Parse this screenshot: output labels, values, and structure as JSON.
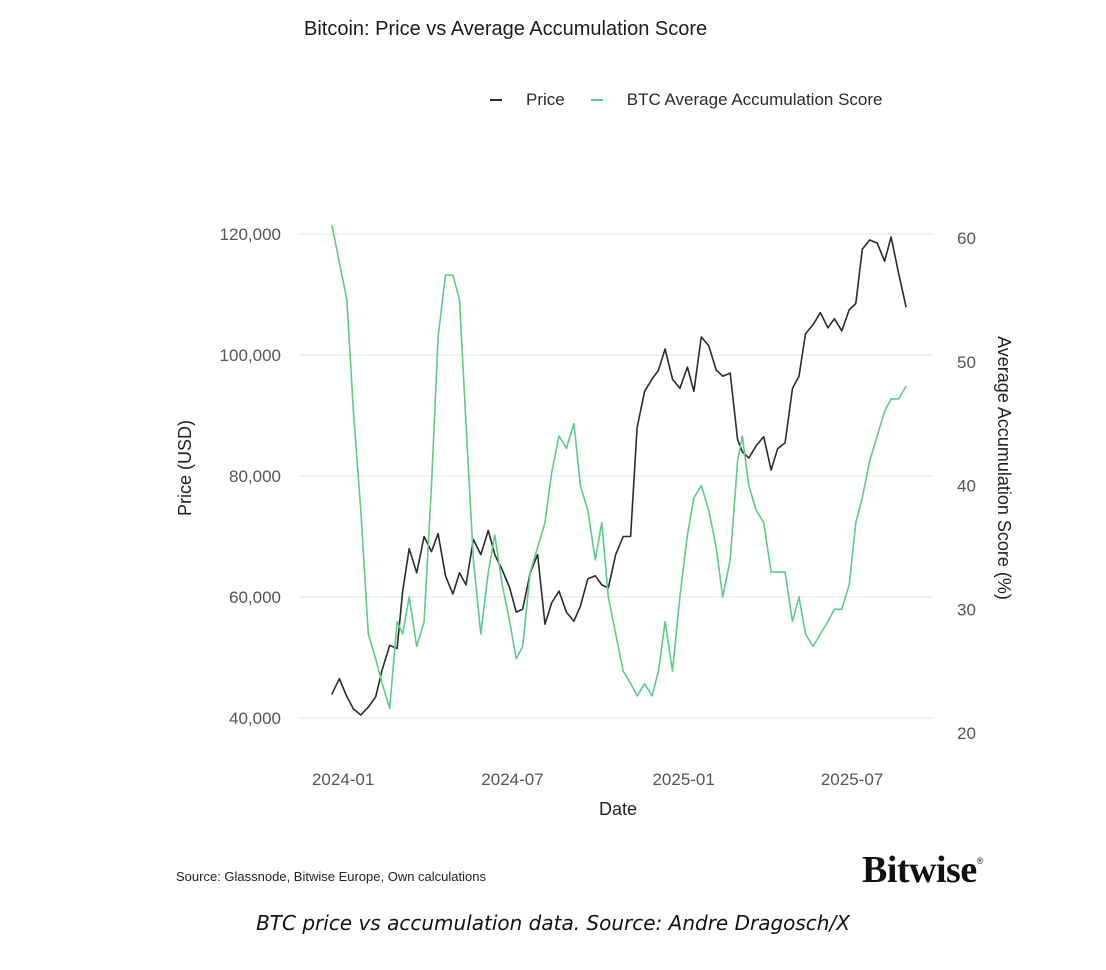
{
  "chart_data": {
    "type": "line",
    "title": "Bitcoin: Price vs Average Accumulation Score",
    "xlabel": "Date",
    "ylabel_left": "Price (USD)",
    "ylabel_right": "Average Accumulation Score (%)",
    "x_ticks": [
      "2024-01",
      "2024-07",
      "2025-01",
      "2025-07"
    ],
    "y_left_ticks": [
      "40,000",
      "60,000",
      "80,000",
      "100,000",
      "120,000"
    ],
    "y_right_ticks": [
      "20",
      "30",
      "40",
      "50",
      "60"
    ],
    "ylim_left": [
      39000,
      123500
    ],
    "ylim_right": [
      20,
      61.5
    ],
    "grid": true,
    "legend_placement": "top-right",
    "series": [
      {
        "name": "Price",
        "axis": "left",
        "color": "#2b2b2b",
        "x": [
          "2023-12-20",
          "2023-12-28",
          "2024-01-05",
          "2024-01-12",
          "2024-01-20",
          "2024-01-28",
          "2024-02-05",
          "2024-02-12",
          "2024-02-20",
          "2024-02-28",
          "2024-03-05",
          "2024-03-12",
          "2024-03-20",
          "2024-03-28",
          "2024-04-05",
          "2024-04-12",
          "2024-04-20",
          "2024-04-28",
          "2024-05-05",
          "2024-05-12",
          "2024-05-20",
          "2024-05-28",
          "2024-06-05",
          "2024-06-12",
          "2024-06-20",
          "2024-06-28",
          "2024-07-05",
          "2024-07-12",
          "2024-07-20",
          "2024-07-28",
          "2024-08-05",
          "2024-08-12",
          "2024-08-20",
          "2024-08-28",
          "2024-09-05",
          "2024-09-12",
          "2024-09-20",
          "2024-09-28",
          "2024-10-05",
          "2024-10-12",
          "2024-10-20",
          "2024-10-28",
          "2024-11-05",
          "2024-11-12",
          "2024-11-20",
          "2024-11-28",
          "2024-12-05",
          "2024-12-12",
          "2024-12-20",
          "2024-12-28",
          "2025-01-05",
          "2025-01-12",
          "2025-01-20",
          "2025-01-28",
          "2025-02-05",
          "2025-02-12",
          "2025-02-20",
          "2025-02-28",
          "2025-03-05",
          "2025-03-12",
          "2025-03-20",
          "2025-03-28",
          "2025-04-05",
          "2025-04-12",
          "2025-04-20",
          "2025-04-28",
          "2025-05-05",
          "2025-05-12",
          "2025-05-20",
          "2025-05-28",
          "2025-06-05",
          "2025-06-12",
          "2025-06-20",
          "2025-06-28",
          "2025-07-05",
          "2025-07-12",
          "2025-07-20",
          "2025-07-28",
          "2025-08-05",
          "2025-08-12",
          "2025-08-20",
          "2025-08-28"
        ],
        "values": [
          44000,
          46500,
          43500,
          41500,
          40500,
          41800,
          43500,
          48000,
          52000,
          51500,
          61000,
          68000,
          64000,
          70000,
          67500,
          70500,
          63500,
          60500,
          64000,
          62000,
          69500,
          67000,
          71000,
          67000,
          64500,
          61500,
          57500,
          58000,
          64000,
          67000,
          55500,
          59000,
          61000,
          57500,
          56000,
          58500,
          63000,
          63500,
          62000,
          61500,
          67000,
          70000,
          70000,
          88000,
          94000,
          96000,
          97500,
          101000,
          96000,
          94500,
          98000,
          94000,
          103000,
          101500,
          97500,
          96500,
          97000,
          86000,
          84000,
          83000,
          85000,
          86500,
          81000,
          84500,
          85500,
          94500,
          96500,
          103500,
          105000,
          107000,
          104500,
          106000,
          104000,
          107500,
          108500,
          117500,
          119000,
          118500,
          115500,
          119500,
          113500,
          108000
        ]
      },
      {
        "name": "BTC Average Accumulation Score",
        "axis": "right",
        "color": "#5dcc8a",
        "x": [
          "2023-12-20",
          "2023-12-28",
          "2024-01-05",
          "2024-01-12",
          "2024-01-20",
          "2024-01-28",
          "2024-02-05",
          "2024-02-12",
          "2024-02-20",
          "2024-02-28",
          "2024-03-05",
          "2024-03-12",
          "2024-03-20",
          "2024-03-28",
          "2024-04-05",
          "2024-04-12",
          "2024-04-20",
          "2024-04-28",
          "2024-05-05",
          "2024-05-12",
          "2024-05-20",
          "2024-05-28",
          "2024-06-05",
          "2024-06-12",
          "2024-06-20",
          "2024-06-28",
          "2024-07-05",
          "2024-07-12",
          "2024-07-20",
          "2024-07-28",
          "2024-08-05",
          "2024-08-12",
          "2024-08-20",
          "2024-08-28",
          "2024-09-05",
          "2024-09-12",
          "2024-09-20",
          "2024-09-28",
          "2024-10-05",
          "2024-10-12",
          "2024-10-20",
          "2024-10-28",
          "2024-11-05",
          "2024-11-12",
          "2024-11-20",
          "2024-11-28",
          "2024-12-05",
          "2024-12-12",
          "2024-12-20",
          "2024-12-28",
          "2025-01-05",
          "2025-01-12",
          "2025-01-20",
          "2025-01-28",
          "2025-02-05",
          "2025-02-12",
          "2025-02-20",
          "2025-02-28",
          "2025-03-05",
          "2025-03-12",
          "2025-03-20",
          "2025-03-28",
          "2025-04-05",
          "2025-04-12",
          "2025-04-20",
          "2025-04-28",
          "2025-05-05",
          "2025-05-12",
          "2025-05-20",
          "2025-05-28",
          "2025-06-05",
          "2025-06-12",
          "2025-06-20",
          "2025-06-28",
          "2025-07-05",
          "2025-07-12",
          "2025-07-20",
          "2025-07-28",
          "2025-08-05",
          "2025-08-12",
          "2025-08-20",
          "2025-08-28"
        ],
        "values": [
          61,
          58,
          55,
          46,
          38,
          28,
          26,
          24,
          22,
          29,
          28,
          31,
          27,
          29,
          40,
          52,
          57,
          57,
          55,
          45,
          34,
          28,
          33,
          36,
          32,
          29,
          26,
          27,
          33,
          35,
          37,
          41,
          44,
          43,
          45,
          40,
          38,
          34,
          37,
          31,
          28,
          25,
          24,
          23,
          24,
          23,
          25,
          29,
          25,
          31,
          36,
          39,
          40,
          38,
          35,
          31,
          34,
          42,
          44,
          40,
          38,
          37,
          33,
          33,
          33,
          29,
          31,
          28,
          27,
          28,
          29,
          30,
          30,
          32,
          37,
          39,
          42,
          44,
          46,
          47,
          47,
          48
        ]
      }
    ]
  },
  "source_note": "Source: Glassnode, Bitwise Europe, Own calculations",
  "logo": {
    "text": "Bitwise",
    "mark": "®"
  },
  "caption": "BTC price vs accumulation data. Source: Andre Dragosch/X"
}
